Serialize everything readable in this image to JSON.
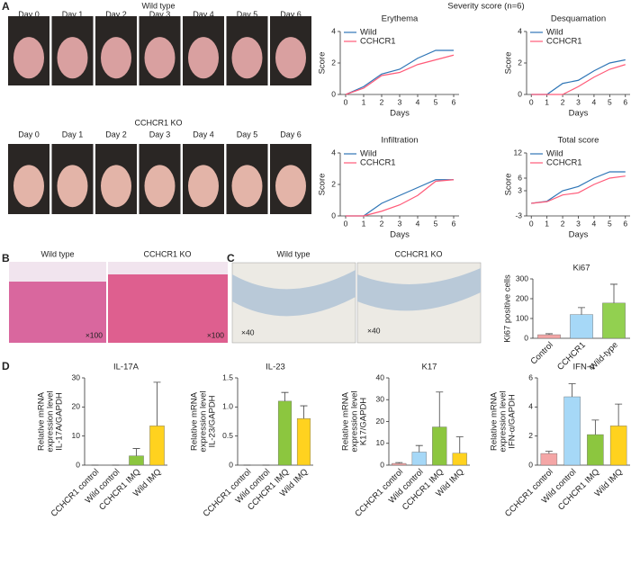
{
  "panels": {
    "A": {
      "letter": "A",
      "severity_title": "Severity score (n=6)",
      "wild_label": "Wild type",
      "ko_label": "CCHCR1 KO",
      "days": [
        "Day 0",
        "Day 1",
        "Day 2",
        "Day 3",
        "Day 4",
        "Day 5",
        "Day 6"
      ]
    },
    "B": {
      "letter": "B",
      "labels": [
        "Wild type",
        "CCHCR1 KO"
      ],
      "magnification": [
        "×100",
        "×100"
      ]
    },
    "C": {
      "letter": "C",
      "labels": [
        "Wild type",
        "CCHCR1 KO"
      ],
      "magnification": [
        "×40",
        "×40"
      ]
    },
    "D": {
      "letter": "D"
    }
  },
  "chart_data": [
    {
      "type": "line",
      "title": "Erythema",
      "xlabel": "Days",
      "ylabel": "Score",
      "x": [
        0,
        1,
        2,
        3,
        4,
        5,
        6
      ],
      "xlim": [
        -0.3,
        6.3
      ],
      "xticks": [
        0,
        1,
        2,
        3,
        4,
        5,
        6
      ],
      "ylim": [
        0,
        4
      ],
      "yticks": [
        0,
        2,
        4
      ],
      "series": [
        {
          "name": "Wild",
          "color": "#2e75b6",
          "values": [
            0,
            0.5,
            1.3,
            1.6,
            2.3,
            2.8,
            2.8
          ]
        },
        {
          "name": "CCHCR1",
          "color": "#ff5a78",
          "values": [
            0,
            0.4,
            1.2,
            1.4,
            1.9,
            2.2,
            2.5
          ]
        }
      ]
    },
    {
      "type": "line",
      "title": "Desquamation",
      "xlabel": "Days",
      "ylabel": "Score",
      "x": [
        0,
        1,
        2,
        3,
        4,
        5,
        6
      ],
      "xlim": [
        -0.3,
        6.3
      ],
      "xticks": [
        0,
        1,
        2,
        3,
        4,
        5,
        6
      ],
      "ylim": [
        0,
        4
      ],
      "yticks": [
        0,
        2,
        4
      ],
      "series": [
        {
          "name": "Wild",
          "color": "#2e75b6",
          "values": [
            0,
            0,
            0.7,
            0.9,
            1.5,
            2.0,
            2.2
          ]
        },
        {
          "name": "CCHCR1",
          "color": "#ff5a78",
          "values": [
            0,
            0,
            0,
            0.5,
            1.1,
            1.6,
            1.9
          ]
        }
      ]
    },
    {
      "type": "line",
      "title": "Infiltration",
      "xlabel": "Days",
      "ylabel": "Score",
      "x": [
        0,
        1,
        2,
        3,
        4,
        5,
        6
      ],
      "xlim": [
        -0.3,
        6.3
      ],
      "xticks": [
        0,
        1,
        2,
        3,
        4,
        5,
        6
      ],
      "ylim": [
        0,
        4
      ],
      "yticks": [
        0,
        2,
        4
      ],
      "series": [
        {
          "name": "Wild",
          "color": "#2e75b6",
          "values": [
            0,
            0,
            0.8,
            1.3,
            1.8,
            2.3,
            2.3
          ]
        },
        {
          "name": "CCHCR1",
          "color": "#ff5a78",
          "values": [
            0,
            0,
            0.3,
            0.7,
            1.3,
            2.2,
            2.3
          ]
        }
      ]
    },
    {
      "type": "line",
      "title": "Total score",
      "xlabel": "Days",
      "ylabel": "Score",
      "x": [
        0,
        1,
        2,
        3,
        4,
        5,
        6
      ],
      "xlim": [
        -0.3,
        6.3
      ],
      "xticks": [
        0,
        1,
        2,
        3,
        4,
        5,
        6
      ],
      "ylim": [
        -3,
        12
      ],
      "yticks": [
        -3,
        3,
        6,
        12
      ],
      "series": [
        {
          "name": "Wild",
          "color": "#2e75b6",
          "values": [
            0,
            0.5,
            3,
            4,
            6,
            7.5,
            7.5
          ]
        },
        {
          "name": "CCHCR1",
          "color": "#ff5a78",
          "values": [
            0,
            0.4,
            2,
            2.5,
            4.5,
            6,
            6.5
          ]
        }
      ]
    },
    {
      "type": "bar",
      "title": "Ki67",
      "ylabel": [
        "Ki67 positive cells"
      ],
      "categories": [
        "Control",
        "CCHCR1",
        "Wild-type"
      ],
      "values": [
        18,
        120,
        178
      ],
      "errors": [
        5,
        35,
        95
      ],
      "colors": [
        "#f4a6a6",
        "#a6d8f7",
        "#92d050"
      ],
      "ylim": [
        0,
        300
      ],
      "yticks": [
        0,
        100,
        200,
        300
      ]
    },
    {
      "type": "bar",
      "title": "IL-17A",
      "ylabel": [
        "Relative mRNA",
        "expression level",
        "IL-17A/GAPDH"
      ],
      "categories": [
        "CCHCR1 control",
        "Wild control",
        "CCHCR1 IMQ",
        "Wild IMQ"
      ],
      "values": [
        0,
        0,
        3.2,
        13.5
      ],
      "errors": [
        0,
        0,
        2.5,
        15
      ],
      "colors": [
        "#f4a6a6",
        "#a6d8f7",
        "#8cc63f",
        "#ffd21f"
      ],
      "ylim": [
        0,
        30
      ],
      "yticks": [
        0,
        10,
        20,
        30
      ]
    },
    {
      "type": "bar",
      "title": "IL-23",
      "ylabel": [
        "Relative mRNA",
        "expression level",
        "IL-23/GAPDH"
      ],
      "categories": [
        "CCHCR1 control",
        "Wild control",
        "CCHCR1 IMQ",
        "Wild IMQ"
      ],
      "values": [
        0,
        0,
        1.1,
        0.8
      ],
      "errors": [
        0,
        0,
        0.15,
        0.22
      ],
      "colors": [
        "#f4a6a6",
        "#a6d8f7",
        "#8cc63f",
        "#ffd21f"
      ],
      "ylim": [
        0,
        1.5
      ],
      "yticks": [
        0,
        0.5,
        {
          "value": 1,
          "label": "1.0"
        },
        1.5
      ]
    },
    {
      "type": "bar",
      "title": "K17",
      "ylabel": [
        "Relative mRNA",
        "expression level",
        "K17/GAPDH"
      ],
      "categories": [
        "CCHCR1 control",
        "Wild control",
        "CCHCR1 IMQ",
        "Wild IMQ"
      ],
      "values": [
        0.8,
        6,
        17.5,
        5.5
      ],
      "errors": [
        0.4,
        3,
        16,
        7.5
      ],
      "colors": [
        "#f4a6a6",
        "#a6d8f7",
        "#8cc63f",
        "#ffd21f"
      ],
      "ylim": [
        0,
        40
      ],
      "yticks": [
        0,
        10,
        20,
        30,
        40
      ]
    },
    {
      "type": "bar",
      "title": "IFN-α",
      "ylabel": [
        "Relative mRNA",
        "expression level",
        "IFN-α/GAPDH"
      ],
      "categories": [
        "CCHCR1 control",
        "Wild control",
        "CCHCR1 IMQ",
        "Wild IMQ"
      ],
      "values": [
        0.8,
        4.7,
        2.1,
        2.7
      ],
      "errors": [
        0.15,
        0.9,
        1.0,
        1.5
      ],
      "colors": [
        "#f4a6a6",
        "#a6d8f7",
        "#8cc63f",
        "#ffd21f"
      ],
      "ylim": [
        0,
        6
      ],
      "yticks": [
        0,
        2,
        4,
        6
      ]
    }
  ]
}
